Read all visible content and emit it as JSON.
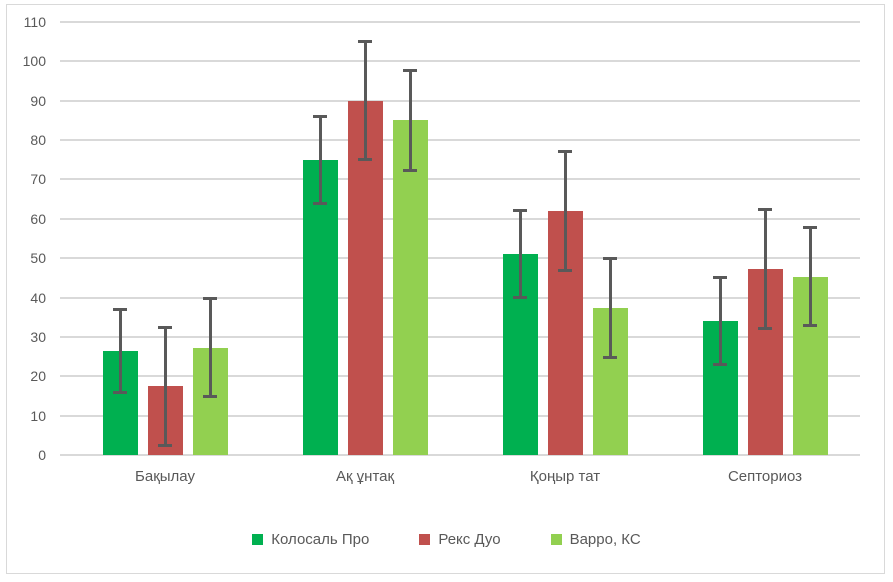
{
  "chart_data": {
    "type": "bar",
    "title": "",
    "categories": [
      "Бақылау",
      "Ақ ұнтақ",
      "Қоңыр тат",
      "Септориоз"
    ],
    "series": [
      {
        "name": "Колосаль Про",
        "color": "#00B050",
        "values": [
          26.5,
          75,
          51,
          34
        ],
        "error_plus_minus": [
          10.5,
          11,
          11,
          11
        ]
      },
      {
        "name": "Рекс Дуо",
        "color": "#C0504D",
        "values": [
          17.5,
          90,
          62,
          47.3
        ],
        "error_plus_minus": [
          15,
          15,
          15.2,
          15.1
        ]
      },
      {
        "name": "Варро, КС",
        "color": "#92D050",
        "values": [
          27.3,
          85,
          37.3,
          45.3
        ],
        "error_plus_minus": [
          12.5,
          12.7,
          12.5,
          12.5
        ]
      }
    ],
    "y_axis": {
      "min": 0,
      "max": 110,
      "step": 10,
      "ticks": [
        "0",
        "10",
        "20",
        "30",
        "40",
        "50",
        "60",
        "70",
        "80",
        "90",
        "100",
        "110"
      ]
    },
    "xlabel": "",
    "ylabel": "",
    "grid": true,
    "legend_position": "bottom",
    "error_bars": true
  },
  "style": {
    "gridline_color": "#D9D9D9",
    "frame_border_color": "#D9D9D9",
    "error_bar_color": "#595959",
    "text_color": "#595959",
    "background_color": "#FFFFFF"
  }
}
